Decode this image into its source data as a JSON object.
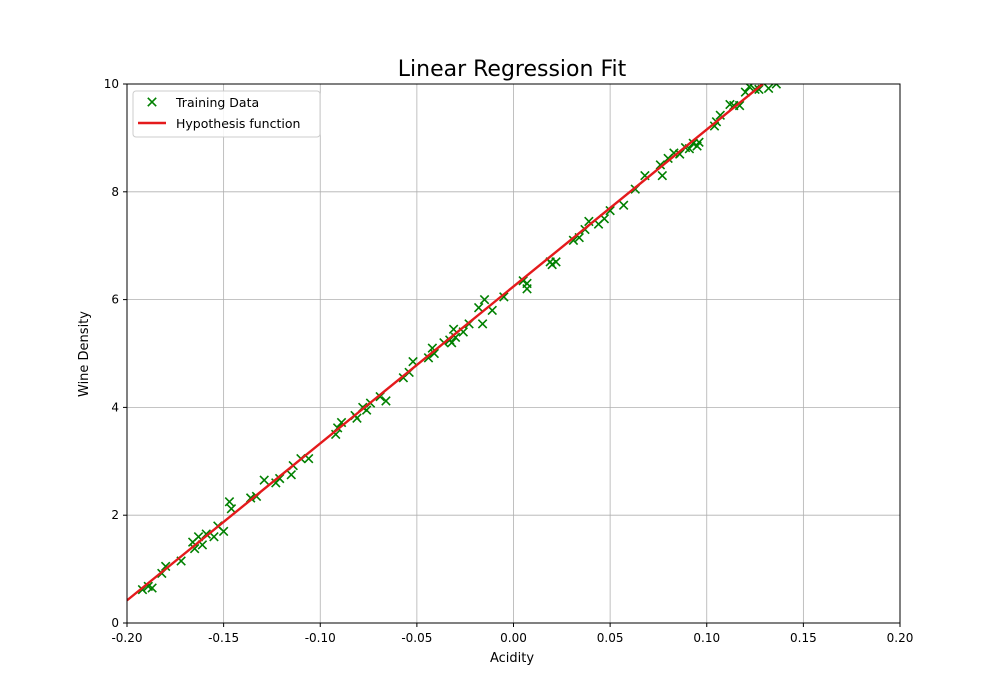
{
  "chart_data": {
    "type": "scatter",
    "title": "Linear Regression Fit",
    "xlabel": "Acidity",
    "ylabel": "Wine Density",
    "xlim": [
      -0.2,
      0.2
    ],
    "ylim": [
      0,
      10
    ],
    "x_ticks": [
      "-0.20",
      "-0.15",
      "-0.10",
      "-0.05",
      "0.00",
      "0.05",
      "0.10",
      "0.15",
      "0.20"
    ],
    "y_ticks": [
      "0",
      "2",
      "4",
      "6",
      "8",
      "10"
    ],
    "x_tick_values": [
      -0.2,
      -0.15,
      -0.1,
      -0.05,
      0.0,
      0.05,
      0.1,
      0.15,
      0.2
    ],
    "y_tick_values": [
      0,
      2,
      4,
      6,
      8,
      10
    ],
    "grid": true,
    "legend_position": "top-left",
    "series": [
      {
        "name": "Training Data",
        "kind": "scatter",
        "marker": "x",
        "color": "#008000",
        "points": [
          [
            -0.192,
            0.62
          ],
          [
            -0.189,
            0.68
          ],
          [
            -0.187,
            0.65
          ],
          [
            -0.182,
            0.92
          ],
          [
            -0.18,
            1.05
          ],
          [
            -0.172,
            1.15
          ],
          [
            -0.166,
            1.5
          ],
          [
            -0.165,
            1.38
          ],
          [
            -0.163,
            1.6
          ],
          [
            -0.161,
            1.45
          ],
          [
            -0.159,
            1.65
          ],
          [
            -0.155,
            1.6
          ],
          [
            -0.153,
            1.8
          ],
          [
            -0.15,
            1.7
          ],
          [
            -0.147,
            2.25
          ],
          [
            -0.146,
            2.12
          ],
          [
            -0.136,
            2.32
          ],
          [
            -0.133,
            2.35
          ],
          [
            -0.129,
            2.65
          ],
          [
            -0.123,
            2.6
          ],
          [
            -0.121,
            2.68
          ],
          [
            -0.115,
            2.75
          ],
          [
            -0.114,
            2.92
          ],
          [
            -0.11,
            3.05
          ],
          [
            -0.106,
            3.05
          ],
          [
            -0.092,
            3.5
          ],
          [
            -0.091,
            3.62
          ],
          [
            -0.089,
            3.72
          ],
          [
            -0.082,
            3.85
          ],
          [
            -0.081,
            3.8
          ],
          [
            -0.078,
            4.0
          ],
          [
            -0.076,
            3.95
          ],
          [
            -0.074,
            4.08
          ],
          [
            -0.069,
            4.2
          ],
          [
            -0.066,
            4.12
          ],
          [
            -0.057,
            4.55
          ],
          [
            -0.054,
            4.65
          ],
          [
            -0.052,
            4.85
          ],
          [
            -0.044,
            4.92
          ],
          [
            -0.042,
            5.1
          ],
          [
            -0.041,
            5.0
          ],
          [
            -0.036,
            5.2
          ],
          [
            -0.033,
            5.25
          ],
          [
            -0.032,
            5.2
          ],
          [
            -0.031,
            5.45
          ],
          [
            -0.03,
            5.3
          ],
          [
            -0.026,
            5.4
          ],
          [
            -0.023,
            5.55
          ],
          [
            -0.018,
            5.85
          ],
          [
            -0.016,
            5.55
          ],
          [
            -0.015,
            6.0
          ],
          [
            -0.011,
            5.8
          ],
          [
            -0.005,
            6.05
          ],
          [
            0.005,
            6.35
          ],
          [
            0.007,
            6.3
          ],
          [
            0.007,
            6.2
          ],
          [
            0.019,
            6.7
          ],
          [
            0.02,
            6.65
          ],
          [
            0.022,
            6.7
          ],
          [
            0.031,
            7.1
          ],
          [
            0.034,
            7.15
          ],
          [
            0.037,
            7.3
          ],
          [
            0.039,
            7.45
          ],
          [
            0.044,
            7.4
          ],
          [
            0.047,
            7.5
          ],
          [
            0.05,
            7.65
          ],
          [
            0.057,
            7.75
          ],
          [
            0.063,
            8.05
          ],
          [
            0.068,
            8.3
          ],
          [
            0.076,
            8.5
          ],
          [
            0.077,
            8.3
          ],
          [
            0.08,
            8.62
          ],
          [
            0.083,
            8.72
          ],
          [
            0.086,
            8.7
          ],
          [
            0.089,
            8.82
          ],
          [
            0.091,
            8.8
          ],
          [
            0.093,
            8.9
          ],
          [
            0.095,
            8.85
          ],
          [
            0.096,
            8.92
          ],
          [
            0.104,
            9.22
          ],
          [
            0.105,
            9.3
          ],
          [
            0.107,
            9.42
          ],
          [
            0.112,
            9.62
          ],
          [
            0.114,
            9.6
          ],
          [
            0.117,
            9.6
          ],
          [
            0.12,
            9.85
          ],
          [
            0.122,
            9.95
          ],
          [
            0.125,
            9.9
          ],
          [
            0.127,
            9.9
          ],
          [
            0.132,
            9.92
          ],
          [
            0.136,
            10.0
          ]
        ]
      },
      {
        "name": "Hypothesis function",
        "kind": "line",
        "color": "#e41a1c",
        "points": [
          [
            -0.2,
            0.42
          ],
          [
            0.129,
            10.0
          ]
        ]
      }
    ]
  }
}
